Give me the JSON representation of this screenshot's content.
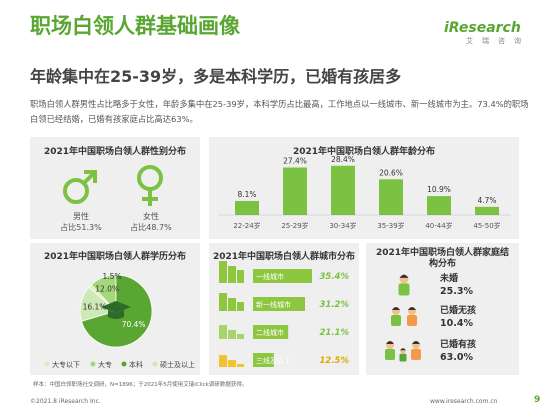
{
  "header": {
    "title": "职场白领人群基础画像",
    "subtitle": "年龄集中在25-39岁，多是本科学历，已婚有孩居多",
    "logo": "iResearch",
    "logo_sub": "艾瑞咨询",
    "description": "职场白领人群男性占比略多于女性，年龄多集中在25-39岁，本科学历占比最高，工作地点以一线城市、新一线城市为主。73.4%的职场白领已经结婚，已婚有孩家庭占比高达63%。"
  },
  "gender": {
    "title": "2021年中国职场白领人群性别分布",
    "male_label": "男性",
    "male_value": "占比51.3%",
    "female_label": "女性",
    "female_value": "占比48.7%",
    "male_color": "#7cc242",
    "female_color": "#7cc242"
  },
  "footer": {
    "footnote": "样本：中国白领职场社交调研，N=1896；于2021年5月使用艾瑞iClick调研数据获得。",
    "copyright": "©2021.8 iResearch Inc.",
    "site": "www.iresearch.com.cn",
    "page": "9"
  },
  "chart_data": [
    {
      "type": "bar",
      "title": "2021年中国职场白领人群年龄分布",
      "categories": [
        "22-24岁",
        "25-29岁",
        "30-34岁",
        "35-39岁",
        "40-44岁",
        "45-50岁"
      ],
      "values": [
        8.1,
        27.4,
        28.4,
        20.6,
        10.9,
        4.7
      ],
      "labels": [
        "8.1%",
        "27.4%",
        "28.4%",
        "20.6%",
        "10.9%",
        "4.7%"
      ],
      "ylim": [
        0,
        30
      ],
      "color": "#7cc242"
    },
    {
      "type": "pie",
      "title": "2021年中国职场白领人群学历分布",
      "categories": [
        "大专以下",
        "大专",
        "本科",
        "硕士及以上"
      ],
      "values": [
        1.5,
        12.0,
        70.4,
        16.1
      ],
      "labels": [
        "1.5%",
        "12.0%",
        "70.4%",
        "16.1%"
      ],
      "colors": [
        "#d8eec4",
        "#a6d77c",
        "#5aa632",
        "#cfe9b6"
      ],
      "legend": "bottom"
    },
    {
      "type": "bar",
      "title": "2021年中国职场白领人群城市分布",
      "categories": [
        "一线城市",
        "新一线城市",
        "二线城市",
        "三线及以下"
      ],
      "values": [
        35.4,
        31.2,
        21.1,
        12.5
      ],
      "labels": [
        "35.4%",
        "31.2%",
        "21.1%",
        "12.5%"
      ],
      "xlim": [
        0,
        36
      ],
      "color": "#8dc63f"
    },
    {
      "type": "table",
      "title": "2021年中国职场白领人群家庭结构分布",
      "categories": [
        "未婚",
        "已婚无孩",
        "已婚有孩"
      ],
      "values": [
        25.3,
        10.4,
        63.0
      ],
      "labels": [
        "25.3%",
        "10.4%",
        "63.0%"
      ]
    }
  ]
}
